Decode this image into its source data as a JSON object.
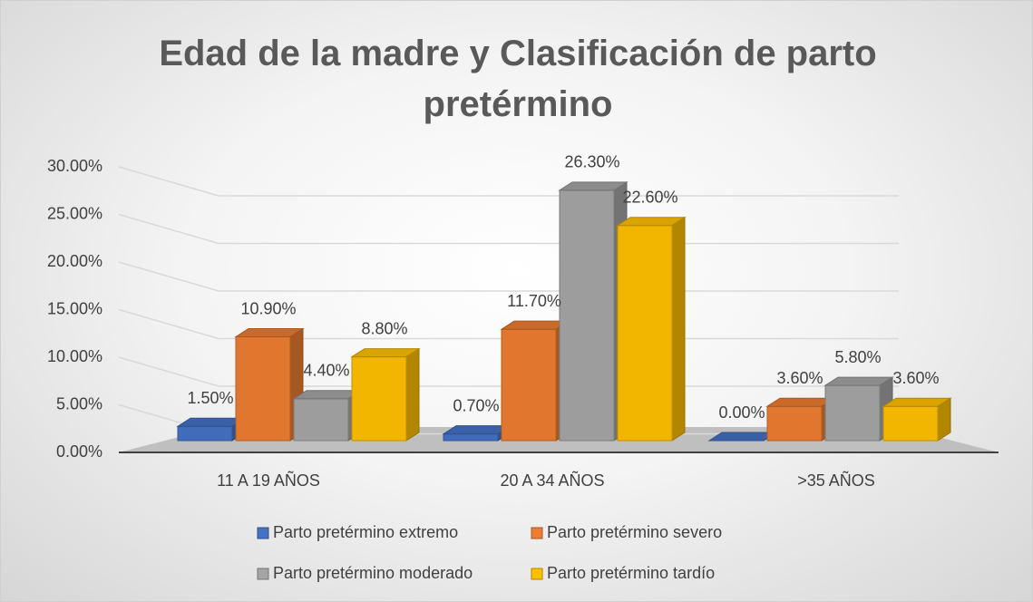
{
  "chart_data": {
    "type": "bar3d",
    "title": "Edad de la madre y Clasificación de parto pretérmino",
    "categories": [
      "11 A 19 AÑOS",
      "20 A 34 AÑOS",
      ">35 AÑOS"
    ],
    "series": [
      {
        "name": "Parto pretérmino extremo",
        "color": "#4472c4",
        "values": [
          1.5,
          0.7,
          0.0
        ],
        "value_labels": [
          "1.50%",
          "0.70%",
          "0.00%"
        ]
      },
      {
        "name": "Parto pretérmino severo",
        "color": "#ed7d31",
        "values": [
          10.9,
          11.7,
          3.6
        ],
        "value_labels": [
          "10.90%",
          "11.70%",
          "3.60%"
        ]
      },
      {
        "name": "Parto pretérmino moderado",
        "color": "#a5a5a5",
        "values": [
          4.4,
          26.3,
          5.8
        ],
        "value_labels": [
          "4.40%",
          "26.30%",
          "5.80%"
        ]
      },
      {
        "name": "Parto pretérmino tardío",
        "color": "#ffc000",
        "values": [
          8.8,
          22.6,
          3.6
        ],
        "value_labels": [
          "8.80%",
          "22.60%",
          "3.60%"
        ]
      }
    ],
    "ylim": [
      0,
      30
    ],
    "yticks": [
      {
        "value": 0,
        "label": "0.00%"
      },
      {
        "value": 5,
        "label": "5.00%"
      },
      {
        "value": 10,
        "label": "10.00%"
      },
      {
        "value": 15,
        "label": "15.00%"
      },
      {
        "value": 20,
        "label": "20.00%"
      },
      {
        "value": 25,
        "label": "25.00%"
      },
      {
        "value": 30,
        "label": "30.00%"
      }
    ],
    "grid": true,
    "legend": "bottom"
  }
}
